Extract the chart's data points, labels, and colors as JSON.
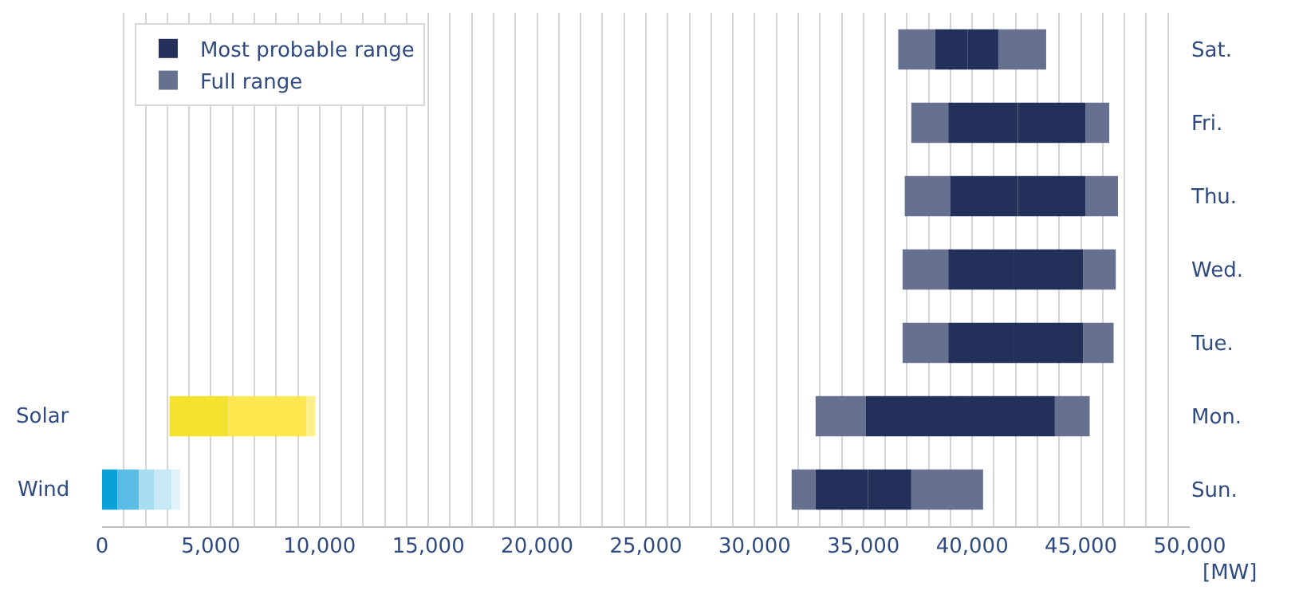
{
  "chart_data": {
    "type": "bar",
    "orientation": "horizontal",
    "xlabel": "[MW]",
    "categories": [
      "Sat.",
      "Fri.",
      "Thu.",
      "Wed.",
      "Tue.",
      "Mon.",
      "Sun."
    ],
    "y2_categories": [
      null,
      null,
      null,
      null,
      null,
      "Solar",
      "Wind"
    ],
    "xlim": [
      0,
      50000
    ],
    "xticks": [
      {
        "value": 0,
        "label": "0"
      },
      {
        "value": 1000,
        "label": null
      },
      {
        "value": 2000,
        "label": null
      },
      {
        "value": 3000,
        "label": null
      },
      {
        "value": 4000,
        "label": null
      },
      {
        "value": 5000,
        "label": "5,000"
      },
      {
        "value": 6000,
        "label": null
      },
      {
        "value": 7000,
        "label": null
      },
      {
        "value": 8000,
        "label": null
      },
      {
        "value": 9000,
        "label": null
      },
      {
        "value": 10000,
        "label": "10,000"
      },
      {
        "value": 11000,
        "label": null
      },
      {
        "value": 12000,
        "label": null
      },
      {
        "value": 13000,
        "label": null
      },
      {
        "value": 14000,
        "label": null
      },
      {
        "value": 15000,
        "label": "15,000"
      },
      {
        "value": 16000,
        "label": null
      },
      {
        "value": 17000,
        "label": null
      },
      {
        "value": 18000,
        "label": null
      },
      {
        "value": 19000,
        "label": null
      },
      {
        "value": 20000,
        "label": "20,000"
      },
      {
        "value": 21000,
        "label": null
      },
      {
        "value": 22000,
        "label": null
      },
      {
        "value": 23000,
        "label": null
      },
      {
        "value": 24000,
        "label": null
      },
      {
        "value": 25000,
        "label": "25,000"
      },
      {
        "value": 26000,
        "label": null
      },
      {
        "value": 27000,
        "label": null
      },
      {
        "value": 28000,
        "label": null
      },
      {
        "value": 29000,
        "label": null
      },
      {
        "value": 30000,
        "label": "30,000"
      },
      {
        "value": 31000,
        "label": null
      },
      {
        "value": 32000,
        "label": null
      },
      {
        "value": 33000,
        "label": null
      },
      {
        "value": 34000,
        "label": null
      },
      {
        "value": 35000,
        "label": "35,000"
      },
      {
        "value": 36000,
        "label": null
      },
      {
        "value": 37000,
        "label": null
      },
      {
        "value": 38000,
        "label": null
      },
      {
        "value": 39000,
        "label": null
      },
      {
        "value": 40000,
        "label": "40,000"
      },
      {
        "value": 41000,
        "label": null
      },
      {
        "value": 42000,
        "label": null
      },
      {
        "value": 43000,
        "label": null
      },
      {
        "value": 44000,
        "label": null
      },
      {
        "value": 45000,
        "label": "45,000"
      },
      {
        "value": 46000,
        "label": null
      },
      {
        "value": 47000,
        "label": null
      },
      {
        "value": 48000,
        "label": null
      },
      {
        "value": 49000,
        "label": null
      },
      {
        "value": 50000,
        "label": "50,000"
      }
    ],
    "grid": "x",
    "legend": "top left",
    "series": [
      {
        "name": "Full range",
        "color": "#65718f",
        "base": [
          36600,
          37200,
          36900,
          36800,
          36800,
          32800,
          31700
        ],
        "values": [
          1700,
          1700,
          2100,
          2100,
          2100,
          2300,
          1100
        ]
      },
      {
        "color": "#65718f",
        "base": [
          41200,
          45200,
          45200,
          45100,
          45100,
          43800,
          37200
        ],
        "values": [
          2200,
          1100,
          1500,
          1500,
          1400,
          1600,
          3300
        ]
      },
      {
        "name": "Most probable range",
        "color": "#22305a",
        "base": [
          38300,
          38900,
          39000,
          38900,
          38900,
          35100,
          32800
        ],
        "values": [
          1500,
          3200,
          3100,
          3000,
          3000,
          4600,
          2400
        ]
      },
      {
        "color": "#22305a",
        "base": [
          39800,
          42100,
          42100,
          41900,
          41900,
          39700,
          35200
        ],
        "values": [
          1400,
          3100,
          3100,
          3200,
          3200,
          4100,
          2000
        ]
      },
      {
        "colors": [
          null,
          null,
          null,
          null,
          null,
          "#f5e22e",
          "#0aa0d8"
        ],
        "base": [
          null,
          null,
          null,
          null,
          null,
          3100,
          0
        ],
        "values": [
          null,
          null,
          null,
          null,
          null,
          2700,
          700
        ]
      },
      {
        "colors": [
          null,
          null,
          null,
          null,
          null,
          "#fde94f",
          "#5bbde5"
        ],
        "base": [
          null,
          null,
          null,
          null,
          null,
          5800,
          700
        ],
        "values": [
          null,
          null,
          null,
          null,
          null,
          3600,
          1000
        ]
      },
      {
        "colors": [
          null,
          null,
          null,
          null,
          null,
          "#fdf08a",
          "#a8dcf0"
        ],
        "base": [
          null,
          null,
          null,
          null,
          null,
          9400,
          1700
        ],
        "values": [
          null,
          null,
          null,
          null,
          null,
          400,
          700
        ]
      },
      {
        "colors": [
          null,
          null,
          null,
          null,
          null,
          null,
          "#c8e8f5"
        ],
        "base": [
          null,
          null,
          null,
          null,
          null,
          null,
          2400
        ],
        "values": [
          null,
          null,
          null,
          null,
          null,
          null,
          800
        ]
      },
      {
        "colors": [
          null,
          null,
          null,
          null,
          null,
          null,
          "#e0f2fa"
        ],
        "base": [
          null,
          null,
          null,
          null,
          null,
          null,
          3200
        ],
        "values": [
          null,
          null,
          null,
          null,
          null,
          null,
          400
        ]
      }
    ]
  }
}
